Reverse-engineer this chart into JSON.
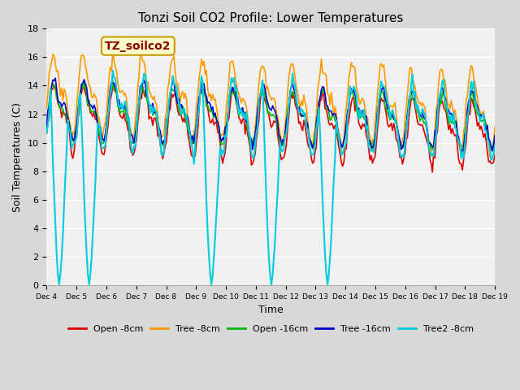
{
  "title": "Tonzi Soil CO2 Profile: Lower Temperatures",
  "xlabel": "Time",
  "ylabel": "Soil Temperatures (C)",
  "ylim": [
    0,
    18
  ],
  "watermark": "TZ_soilco2",
  "tick_labels": [
    "Dec 4",
    "Dec 5",
    "Dec 6",
    "Dec 7",
    "Dec 8",
    "Dec 9",
    "Dec 10",
    "Dec 11",
    "Dec 12",
    "Dec 13",
    "Dec 14",
    "Dec 15",
    "Dec 16",
    "Dec 17",
    "Dec 18",
    "Dec 19"
  ],
  "legend": [
    {
      "label": "Open -8cm",
      "color": "#dd0000"
    },
    {
      "label": "Tree -8cm",
      "color": "#ff9900"
    },
    {
      "label": "Open -16cm",
      "color": "#00bb00"
    },
    {
      "label": "Tree -16cm",
      "color": "#0000cc"
    },
    {
      "label": "Tree2 -8cm",
      "color": "#00ccdd"
    }
  ],
  "series_colors": [
    "#dd0000",
    "#ff9900",
    "#00bb00",
    "#0000cc",
    "#00ccdd"
  ],
  "cyan_spike_times": [
    0.45,
    1.45,
    5.5,
    7.5,
    9.4
  ]
}
